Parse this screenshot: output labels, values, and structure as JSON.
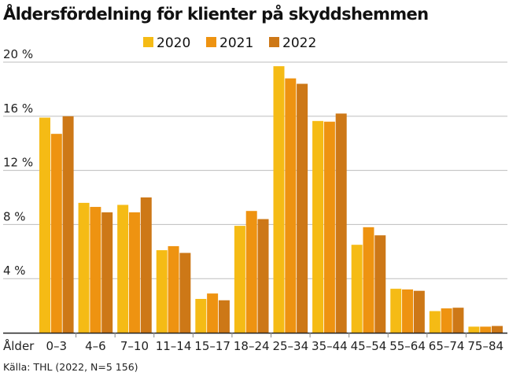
{
  "chart_data": {
    "type": "bar",
    "title": "Åldersfördelning för klienter på skyddshemmen",
    "xlabel": "Ålder",
    "ylabel": "",
    "ylim": [
      0,
      20
    ],
    "yticks": [
      4,
      8,
      12,
      16,
      20
    ],
    "ytick_labels": [
      "4 %",
      "8 %",
      "12 %",
      "16 %",
      "20 %"
    ],
    "grid": true,
    "legend_position": "top-center",
    "categories": [
      "0–3",
      "4–6",
      "7–10",
      "11–14",
      "15–17",
      "18–24",
      "25–34",
      "35–44",
      "45–54",
      "55–64",
      "65–74",
      "75–84"
    ],
    "series": [
      {
        "name": "2020",
        "color": "#f5bb15",
        "values": [
          15.9,
          9.6,
          9.45,
          6.1,
          2.5,
          7.9,
          19.7,
          15.65,
          6.5,
          3.25,
          1.6,
          0.45
        ]
      },
      {
        "name": "2021",
        "color": "#ee9311",
        "values": [
          14.7,
          9.3,
          8.9,
          6.4,
          2.9,
          9.0,
          18.8,
          15.6,
          7.8,
          3.2,
          1.8,
          0.45
        ]
      },
      {
        "name": "2022",
        "color": "#cd7817",
        "values": [
          16.0,
          8.9,
          10.0,
          5.9,
          2.4,
          8.4,
          18.4,
          16.2,
          7.2,
          3.1,
          1.85,
          0.5
        ]
      }
    ],
    "source": "Källa: THL (2022, N=5 156)"
  }
}
